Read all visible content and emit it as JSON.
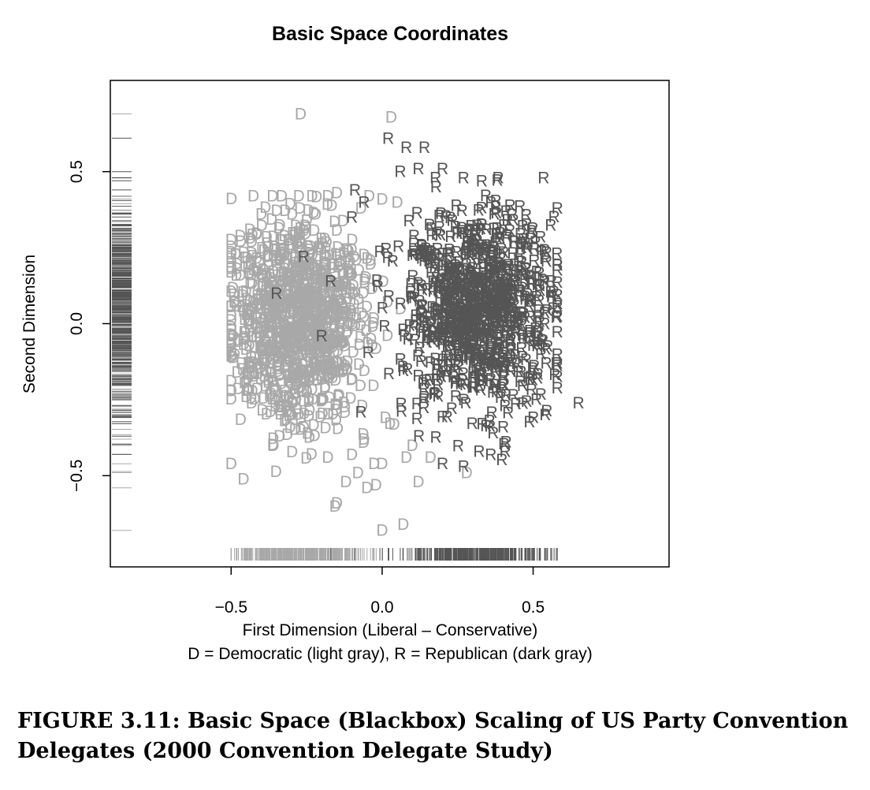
{
  "caption": "FIGURE 3.11: Basic Space (Blackbox) Scaling of US Party Convention Delegates (2000 Convention Delegate Study)",
  "colors": {
    "D": "#a8a8a8",
    "R": "#555555",
    "frame": "#000000"
  },
  "chart_data": {
    "type": "scatter",
    "title": "Basic Space Coordinates",
    "xlabel": "First Dimension (Liberal – Conservative)",
    "xlabel2": "D = Democratic (light gray), R = Republican (dark gray)",
    "ylabel": "Second Dimension",
    "xlim": [
      -0.9,
      0.95
    ],
    "ylim": [
      -0.8,
      0.8
    ],
    "xticks": [
      -0.5,
      0.0,
      0.5
    ],
    "xtick_labels": [
      "−0.5",
      "0.0",
      "0.5"
    ],
    "yticks": [
      -0.5,
      0.0,
      0.5
    ],
    "ytick_labels": [
      "−0.5",
      "0.0",
      "0.5"
    ],
    "grid": false,
    "rug": {
      "x": "bottom",
      "y": "left"
    },
    "series": [
      {
        "marker": "D",
        "color": "#a8a8a8",
        "points": [
          [
            -0.27,
            0.69
          ],
          [
            0.03,
            0.68
          ],
          [
            -0.4,
            0.36
          ],
          [
            -0.5,
            0.17
          ],
          [
            -0.48,
            -0.16
          ],
          [
            -0.45,
            -0.24
          ],
          [
            -0.36,
            -0.4
          ],
          [
            -0.18,
            -0.44
          ],
          [
            -0.15,
            -0.59
          ],
          [
            0.0,
            -0.68
          ],
          [
            0.07,
            -0.66
          ],
          [
            0.16,
            -0.44
          ],
          [
            0.28,
            -0.49
          ],
          [
            0.12,
            -0.52
          ],
          [
            0.0,
            -0.46
          ],
          [
            -0.05,
            -0.54
          ],
          [
            -0.22,
            0.36
          ],
          [
            -0.25,
            0.34
          ],
          [
            -0.18,
            0.42
          ],
          [
            -0.15,
            0.43
          ],
          [
            -0.07,
            0.38
          ],
          [
            0.0,
            0.41
          ],
          [
            0.05,
            0.4
          ],
          [
            -0.33,
            0.14
          ],
          [
            -0.38,
            0.22
          ],
          [
            -0.44,
            0.0
          ],
          [
            -0.46,
            -0.05
          ],
          [
            -0.3,
            -0.3
          ],
          [
            -0.26,
            -0.34
          ],
          [
            -0.1,
            -0.43
          ],
          [
            -0.06,
            -0.38
          ],
          [
            0.08,
            -0.44
          ],
          [
            0.04,
            -0.33
          ],
          [
            0.1,
            -0.4
          ],
          [
            -0.02,
            -0.53
          ],
          [
            -0.12,
            -0.52
          ],
          [
            -0.08,
            -0.49
          ]
        ]
      },
      {
        "marker": "R",
        "color": "#555555",
        "points": [
          [
            0.02,
            0.61
          ],
          [
            0.08,
            0.58
          ],
          [
            0.14,
            0.58
          ],
          [
            0.06,
            0.5
          ],
          [
            0.12,
            0.51
          ],
          [
            0.2,
            0.51
          ],
          [
            0.33,
            0.47
          ],
          [
            0.36,
            0.4
          ],
          [
            0.41,
            0.37
          ],
          [
            0.49,
            0.28
          ],
          [
            0.56,
            0.14
          ],
          [
            0.65,
            -0.26
          ],
          [
            0.54,
            -0.3
          ],
          [
            0.27,
            -0.47
          ],
          [
            0.2,
            -0.46
          ],
          [
            0.36,
            -0.43
          ],
          [
            -0.26,
            0.22
          ],
          [
            -0.35,
            0.1
          ],
          [
            -0.17,
            0.14
          ],
          [
            -0.07,
            -0.29
          ],
          [
            -0.2,
            -0.04
          ],
          [
            -0.09,
            0.44
          ],
          [
            -0.06,
            0.4
          ],
          [
            -0.1,
            0.35
          ]
        ]
      }
    ]
  }
}
